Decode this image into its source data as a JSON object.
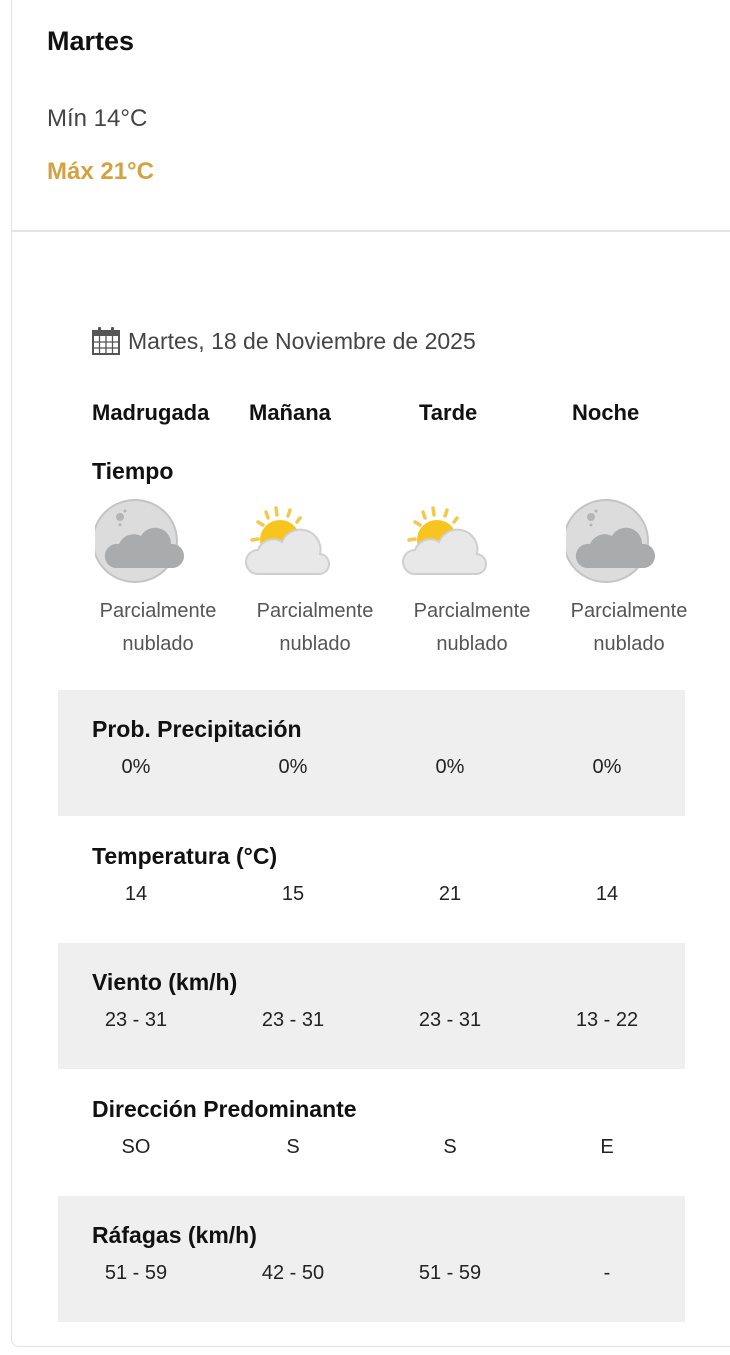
{
  "summary": {
    "day": "Martes",
    "min": "Mín 14°C",
    "max": "Máx 21°C",
    "max_color": "#d4a240"
  },
  "detail": {
    "date": "Martes, 18 de Noviembre de 2025",
    "date_icon": "calendar-icon",
    "periods": [
      "Madrugada",
      "Mañana",
      "Tarde",
      "Noche"
    ],
    "weather_title": "Tiempo",
    "weather": [
      {
        "icon": "moon-cloud-icon",
        "line1": "Parcialmente",
        "line2": "nublado"
      },
      {
        "icon": "sun-cloud-icon",
        "line1": "Parcialmente",
        "line2": "nublado"
      },
      {
        "icon": "sun-cloud-icon",
        "line1": "Parcialmente",
        "line2": "nublado"
      },
      {
        "icon": "moon-cloud-icon",
        "line1": "Parcialmente",
        "line2": "nublado"
      }
    ],
    "rows": [
      {
        "title": "Prob. Precipitación",
        "values": [
          "0%",
          "0%",
          "0%",
          "0%"
        ]
      },
      {
        "title": "Temperatura (°C)",
        "values": [
          "14",
          "15",
          "21",
          "14"
        ]
      },
      {
        "title": "Viento (km/h)",
        "values": [
          "23 - 31",
          "23 - 31",
          "23 - 31",
          "13 - 22"
        ]
      },
      {
        "title": "Dirección Predominante",
        "values": [
          "SO",
          "S",
          "S",
          "E"
        ]
      },
      {
        "title": "Ráfagas (km/h)",
        "values": [
          "51 - 59",
          "42 - 50",
          "51 - 59",
          "-"
        ]
      }
    ]
  }
}
